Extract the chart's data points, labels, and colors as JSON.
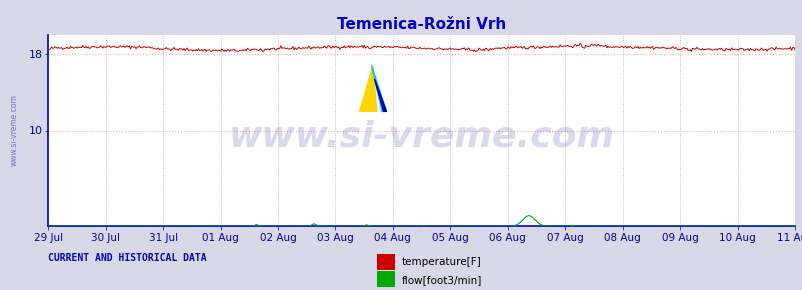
{
  "title": "Temenica-Rožni Vrh",
  "background_color": "#d8d8e8",
  "plot_bg_color": "#ffffff",
  "x_labels": [
    "29 Jul",
    "30 Jul",
    "31 Jul",
    "01 Aug",
    "02 Aug",
    "03 Aug",
    "04 Aug",
    "05 Aug",
    "06 Aug",
    "07 Aug",
    "08 Aug",
    "09 Aug",
    "10 Aug",
    "11 Aug"
  ],
  "n_points": 672,
  "ylim": [
    0,
    20
  ],
  "ytick_vals": [
    10,
    18
  ],
  "temp_base": 18.6,
  "temp_color": "#cc0000",
  "flow_color": "#00aa00",
  "grid_color_h": "#ffaaaa",
  "grid_color_v": "#aaaacc",
  "spine_color": "#0000cc",
  "tick_label_color": "#0000aa",
  "title_color": "#0000cc",
  "watermark_text": "www.si-vreme.com",
  "watermark_color": "#3333aa",
  "watermark_alpha": 0.18,
  "watermark_fontsize": 26,
  "left_watermark": "www.si-vreme.com",
  "legend_temp": "temperature[F]",
  "legend_flow": "flow[foot3/min]",
  "bottom_label": "CURRENT AND HISTORICAL DATA",
  "bottom_label_color": "#0000cc",
  "figsize": [
    8.03,
    2.9
  ],
  "dpi": 100
}
